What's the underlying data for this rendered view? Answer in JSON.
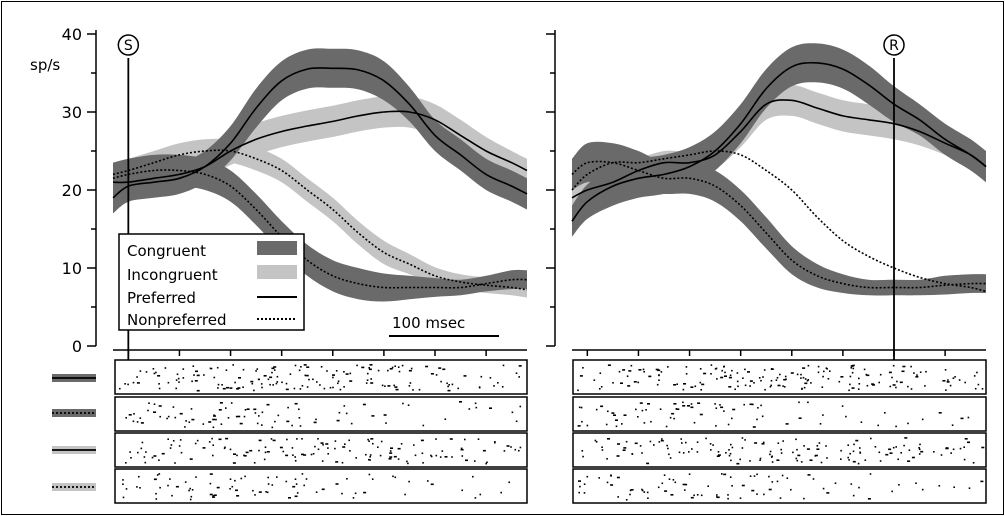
{
  "chart_data": {
    "type": "line",
    "y_unit_label": "sp/s",
    "ylim": [
      0,
      40
    ],
    "y_ticks": [
      "0",
      "10",
      "20",
      "30",
      "40"
    ],
    "x_scale_bar": "100 msec",
    "x_range_ms": [
      -15,
      390
    ],
    "grid": false,
    "legend": {
      "placement": "lower-left of left panel",
      "entries": [
        {
          "label": "Congruent",
          "style": "dark-band",
          "color": "#6a6a6a"
        },
        {
          "label": "Incongruent",
          "style": "light-band",
          "color": "#c4c4c4"
        },
        {
          "label": "Preferred",
          "style": "solid-line",
          "color": "#000000"
        },
        {
          "label": "Nonpreferred",
          "style": "dotted-line",
          "color": "#000000"
        }
      ]
    },
    "panels": [
      {
        "event_marker": "S",
        "event_time_ms": 0,
        "series": [
          {
            "name": "Congruent",
            "preference": "Preferred",
            "band": "dark",
            "x": [
              -15,
              0,
              25,
              50,
              75,
              100,
              125,
              150,
              175,
              200,
              225,
              250,
              275,
              300,
              325,
              350,
              375,
              390
            ],
            "y": [
              19,
              20.5,
              21,
              21.5,
              23,
              26,
              30.5,
              34,
              35.5,
              35.6,
              35.4,
              34,
              31,
              27,
              24.5,
              22,
              20.5,
              19.5
            ],
            "band_halfwidth": [
              2,
              2,
              2,
              2,
              2,
              2.2,
              2.5,
              2.5,
              2.5,
              2.5,
              2.5,
              2.5,
              2.2,
              2,
              2,
              2,
              2,
              2
            ]
          },
          {
            "name": "Congruent",
            "preference": "Nonpreferred",
            "band": "dark",
            "x": [
              -15,
              0,
              25,
              50,
              75,
              100,
              125,
              150,
              175,
              200,
              225,
              250,
              275,
              300,
              325,
              350,
              375,
              390
            ],
            "y": [
              21.5,
              22,
              22.5,
              22.5,
              22,
              20.5,
              17.5,
              14,
              11,
              9,
              8,
              7.5,
              7.5,
              7.5,
              7.5,
              8,
              8.5,
              8.5
            ],
            "band_halfwidth": [
              2,
              2,
              2,
              2,
              2,
              2,
              2,
              2,
              2,
              2,
              2,
              1.8,
              1.5,
              1.2,
              1,
              1,
              1.2,
              1.2
            ]
          },
          {
            "name": "Incongruent",
            "preference": "Preferred",
            "band": "light",
            "x": [
              -15,
              0,
              25,
              50,
              75,
              100,
              125,
              150,
              175,
              200,
              225,
              250,
              275,
              300,
              325,
              350,
              375,
              390
            ],
            "y": [
              21,
              21,
              21.5,
              22,
              23,
              25,
              26.5,
              27.5,
              28.2,
              28.8,
              29.5,
              30,
              30,
              29,
              27,
              25,
              23.5,
              22.5
            ],
            "band_halfwidth": [
              1.5,
              1.5,
              1.5,
              1.5,
              1.5,
              1.8,
              2,
              2,
              2,
              2,
              2,
              2,
              2,
              2,
              2,
              1.8,
              1.5,
              1.5
            ]
          },
          {
            "name": "Incongruent",
            "preference": "Nonpreferred",
            "band": "light",
            "x": [
              -15,
              0,
              25,
              50,
              75,
              100,
              125,
              150,
              175,
              200,
              225,
              250,
              275,
              300,
              325,
              350,
              375,
              390
            ],
            "y": [
              22,
              22.5,
              23.5,
              24.5,
              25,
              25,
              24,
              22.5,
              20,
              17.5,
              14.5,
              12,
              10.5,
              9,
              8.2,
              7.8,
              7.5,
              7.2
            ],
            "band_halfwidth": [
              1.5,
              1.5,
              1.5,
              1.5,
              1.5,
              1.5,
              1.5,
              1.5,
              1.5,
              1.5,
              1.5,
              1.5,
              1.3,
              1.1,
              1,
              1,
              1,
              1
            ]
          }
        ]
      },
      {
        "event_marker": "R",
        "event_time_ms": 300,
        "series": [
          {
            "name": "Congruent",
            "preference": "Preferred",
            "band": "dark",
            "x": [
              -15,
              0,
              25,
              50,
              75,
              100,
              125,
              150,
              175,
              200,
              225,
              250,
              275,
              300,
              325,
              350,
              375,
              390
            ],
            "y": [
              16,
              18.5,
              20.5,
              21.5,
              22,
              23,
              25,
              28.5,
              33,
              35.8,
              36.3,
              35.5,
              33.5,
              31,
              29,
              26.5,
              24.5,
              23
            ],
            "band_halfwidth": [
              2,
              2.2,
              2.5,
              2.5,
              2.5,
              2.5,
              2.5,
              2.5,
              2.5,
              2.5,
              2.5,
              2.5,
              2.5,
              2.3,
              2,
              2,
              2,
              2
            ]
          },
          {
            "name": "Congruent",
            "preference": "Nonpreferred",
            "band": "dark",
            "x": [
              -15,
              0,
              25,
              50,
              75,
              100,
              125,
              150,
              175,
              200,
              225,
              250,
              275,
              300,
              325,
              350,
              375,
              390
            ],
            "y": [
              22,
              23.5,
              23.5,
              22.5,
              21.5,
              21.5,
              20.5,
              18,
              14.5,
              11,
              9,
              8,
              7.5,
              7.5,
              7.5,
              7.8,
              8,
              8
            ],
            "band_halfwidth": [
              2,
              2.5,
              2.5,
              2.5,
              2,
              2,
              2,
              2,
              2,
              1.8,
              1.5,
              1.2,
              1,
              1,
              1,
              1.2,
              1.2,
              1.2
            ]
          },
          {
            "name": "Incongruent",
            "preference": "Preferred",
            "band": "light",
            "x": [
              -15,
              0,
              25,
              50,
              75,
              100,
              125,
              150,
              175,
              200,
              225,
              250,
              275,
              300,
              325,
              350,
              375,
              390
            ],
            "y": [
              19,
              20,
              21,
              22.5,
              23.5,
              23.5,
              24.5,
              27.5,
              31,
              31.5,
              30.5,
              29.5,
              29,
              28.5,
              27.5,
              26,
              24.5,
              23
            ],
            "band_halfwidth": [
              1.5,
              1.5,
              1.5,
              1.5,
              1.5,
              1.5,
              1.8,
              2,
              2,
              2,
              2,
              2,
              2,
              2,
              1.8,
              1.5,
              1.5,
              1.5
            ]
          },
          {
            "name": "Incongruent",
            "preference": "Nonpreferred",
            "band": "light",
            "x": [
              -15,
              0,
              25,
              50,
              75,
              100,
              125,
              150,
              175,
              200,
              225,
              250,
              275,
              300,
              325,
              350,
              375,
              390
            ],
            "y": [
              20,
              22,
              23.5,
              23.5,
              24,
              24.5,
              25,
              24.5,
              22.5,
              20,
              16.5,
              13.5,
              11.5,
              10,
              8.8,
              8,
              7.5,
              7
            ]
          }
        ]
      }
    ],
    "raster_rows": [
      {
        "condition": "Congruent",
        "preference": "Preferred"
      },
      {
        "condition": "Congruent",
        "preference": "Nonpreferred"
      },
      {
        "condition": "Incongruent",
        "preference": "Preferred"
      },
      {
        "condition": "Incongruent",
        "preference": "Nonpreferred"
      }
    ],
    "raster_density": [
      {
        "left": [
          0.34,
          0.4,
          0.46,
          0.52,
          0.56,
          0.6,
          0.62,
          0.62,
          0.6,
          0.56,
          0.48,
          0.4,
          0.32,
          0.28,
          0.26,
          0.24
        ],
        "right": [
          0.3,
          0.34,
          0.38,
          0.44,
          0.5,
          0.56,
          0.62,
          0.64,
          0.66,
          0.62,
          0.56,
          0.5,
          0.44,
          0.4,
          0.36,
          0.32
        ]
      },
      {
        "left": [
          0.34,
          0.36,
          0.38,
          0.4,
          0.4,
          0.38,
          0.32,
          0.24,
          0.16,
          0.12,
          0.1,
          0.1,
          0.1,
          0.1,
          0.12,
          0.12
        ],
        "right": [
          0.32,
          0.36,
          0.38,
          0.38,
          0.36,
          0.34,
          0.28,
          0.2,
          0.14,
          0.12,
          0.1,
          0.1,
          0.1,
          0.1,
          0.1,
          0.1
        ]
      },
      {
        "left": [
          0.32,
          0.34,
          0.36,
          0.38,
          0.4,
          0.42,
          0.44,
          0.46,
          0.48,
          0.48,
          0.46,
          0.42,
          0.36,
          0.32,
          0.3,
          0.28
        ],
        "right": [
          0.28,
          0.3,
          0.32,
          0.36,
          0.4,
          0.46,
          0.5,
          0.5,
          0.48,
          0.46,
          0.44,
          0.42,
          0.4,
          0.36,
          0.34,
          0.3
        ]
      },
      {
        "left": [
          0.34,
          0.36,
          0.38,
          0.38,
          0.36,
          0.34,
          0.3,
          0.26,
          0.2,
          0.16,
          0.12,
          0.1,
          0.1,
          0.1,
          0.1,
          0.1
        ],
        "right": [
          0.3,
          0.34,
          0.36,
          0.36,
          0.36,
          0.36,
          0.34,
          0.3,
          0.24,
          0.18,
          0.14,
          0.12,
          0.1,
          0.1,
          0.1,
          0.1
        ]
      }
    ]
  }
}
